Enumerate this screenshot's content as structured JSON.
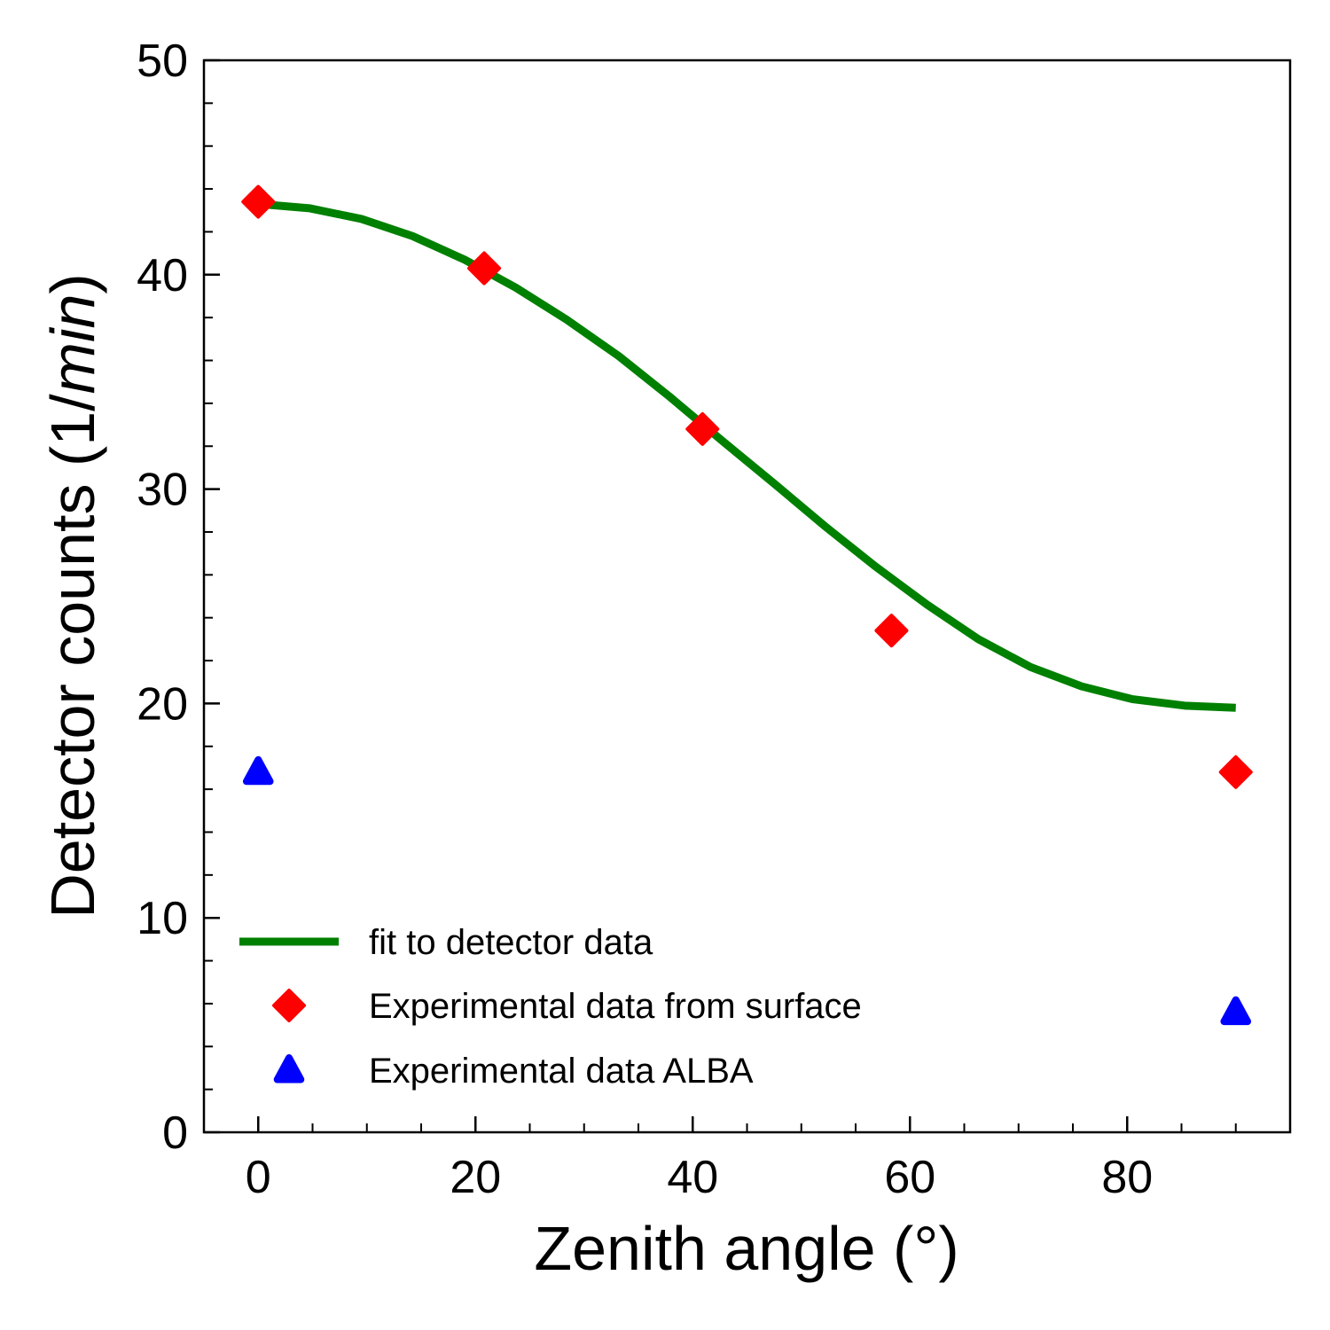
{
  "chart_data": {
    "type": "scatter",
    "xlabel": "Zenith angle (°)",
    "ylabel_prefix": "Detector counts (1/",
    "ylabel_italic": "min",
    "ylabel_suffix": ")",
    "xlim": [
      -5,
      95
    ],
    "ylim": [
      0,
      50
    ],
    "x_major_ticks": [
      0,
      20,
      40,
      60,
      80
    ],
    "x_minor_step": 5,
    "y_major_ticks": [
      0,
      10,
      20,
      30,
      40,
      50
    ],
    "y_minor_step": 2,
    "grid": false,
    "legend_position": "lower-left",
    "series": [
      {
        "name": "fit to detector data",
        "kind": "line",
        "color": "#008000",
        "x": [
          0,
          4.7,
          9.5,
          14.2,
          19,
          23.7,
          28.4,
          33.2,
          37.9,
          42.6,
          47.4,
          52.1,
          56.8,
          61.6,
          66.3,
          71.1,
          75.8,
          80.5,
          85.3,
          90
        ],
        "y": [
          43.3,
          43.1,
          42.6,
          41.8,
          40.7,
          39.4,
          37.9,
          36.2,
          34.3,
          32.3,
          30.3,
          28.3,
          26.4,
          24.6,
          23.0,
          21.7,
          20.8,
          20.2,
          19.9,
          19.8
        ]
      },
      {
        "name": "Experimental data from surface",
        "kind": "marker",
        "marker": "diamond",
        "color": "#ff0000",
        "x": [
          0,
          20.8,
          40.9,
          58.3,
          90
        ],
        "y": [
          43.4,
          40.3,
          32.8,
          23.4,
          16.8
        ]
      },
      {
        "name": "Experimental data ALBA",
        "kind": "marker",
        "marker": "triangle",
        "color": "#0000ff",
        "x": [
          0,
          90
        ],
        "y": [
          16.8,
          5.6
        ]
      }
    ]
  }
}
